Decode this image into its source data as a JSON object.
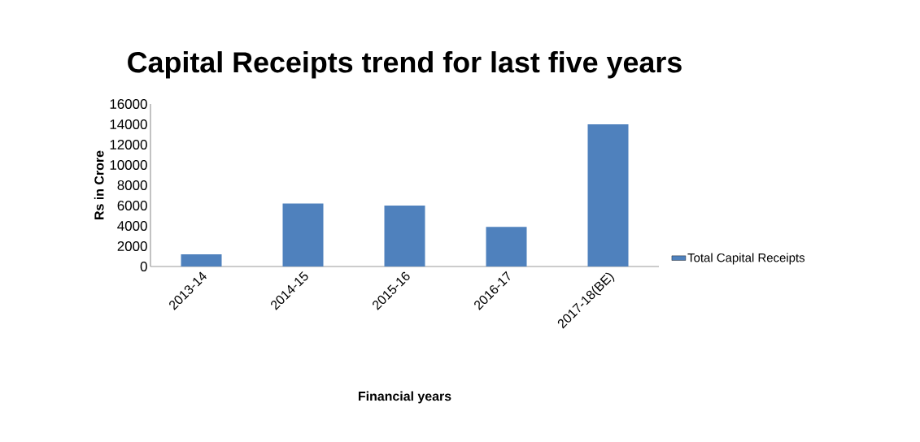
{
  "chart_data": {
    "type": "bar",
    "title": "Capital Receipts trend for last five years",
    "xlabel": "Financial years",
    "ylabel": "Rs in Crore",
    "categories": [
      "2013-14",
      "2014-15",
      "2015-16",
      "2016-17",
      "2017-18(BE)"
    ],
    "series": [
      {
        "name": "Total Capital Receipts",
        "color": "#4f81bd",
        "values": [
          1200,
          6200,
          6000,
          3900,
          14000
        ]
      }
    ],
    "ylim": [
      0,
      16000
    ],
    "yticks": [
      0,
      2000,
      4000,
      6000,
      8000,
      10000,
      12000,
      14000,
      16000
    ],
    "grid": false,
    "legend": "right"
  }
}
